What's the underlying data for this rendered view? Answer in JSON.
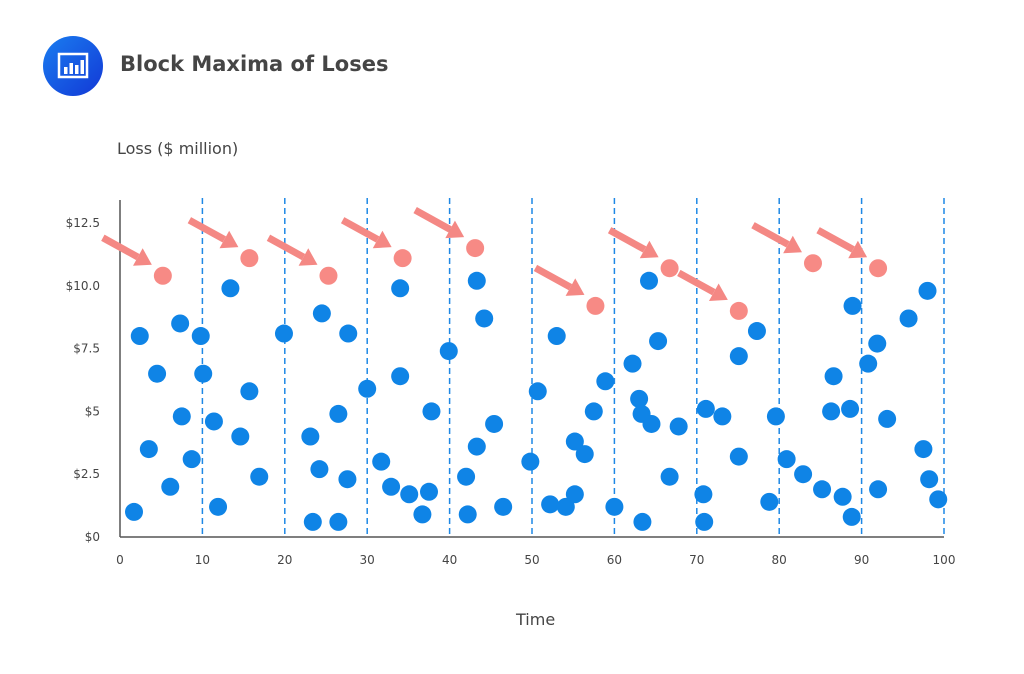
{
  "header": {
    "title": "Block Maxima of Loses",
    "logo_icon": "bar-chart-icon"
  },
  "chart_data": {
    "type": "scatter",
    "title": "Block Maxima of Loses",
    "ylabel": "Loss ($ million)",
    "xlabel": "Time",
    "xlim": [
      0,
      100
    ],
    "ylim": [
      0,
      12.5
    ],
    "x_ticks": [
      0,
      10,
      20,
      30,
      40,
      50,
      60,
      70,
      80,
      90,
      100
    ],
    "x_tick_labels": [
      "0",
      "10",
      "20",
      "30",
      "40",
      "50",
      "60",
      "70",
      "80",
      "90",
      "100"
    ],
    "y_ticks": [
      0,
      2.5,
      5,
      7.5,
      10,
      12.5
    ],
    "y_tick_labels": [
      "$0",
      "$2.5",
      "$5",
      "$7.5",
      "$10.0",
      "$12.5"
    ],
    "block_boundaries": [
      10,
      20,
      30,
      40,
      50,
      60,
      70,
      80,
      90,
      100
    ],
    "grid": "vertical dashed lines at block boundaries",
    "colors": {
      "losses": "#0f84e6",
      "maxima": "#f78a85",
      "arrows": "#f48884",
      "block_lines": "#1e88e5"
    },
    "series": [
      {
        "role": "losses",
        "points": [
          [
            1.7,
            1.0
          ],
          [
            2.4,
            8.0
          ],
          [
            3.5,
            3.5
          ],
          [
            4.5,
            6.5
          ],
          [
            6.1,
            2.0
          ],
          [
            7.3,
            8.5
          ],
          [
            7.5,
            4.8
          ],
          [
            8.7,
            3.1
          ],
          [
            9.8,
            8.0
          ],
          [
            10.1,
            6.5
          ],
          [
            11.4,
            4.6
          ],
          [
            11.9,
            1.2
          ],
          [
            13.4,
            9.9
          ],
          [
            14.6,
            4.0
          ],
          [
            15.7,
            5.8
          ],
          [
            16.9,
            2.4
          ],
          [
            19.9,
            8.1
          ],
          [
            23.1,
            4.0
          ],
          [
            23.4,
            0.6
          ],
          [
            24.2,
            2.7
          ],
          [
            24.5,
            8.9
          ],
          [
            26.5,
            0.6
          ],
          [
            26.5,
            4.9
          ],
          [
            27.6,
            2.3
          ],
          [
            27.7,
            8.1
          ],
          [
            30.0,
            5.9
          ],
          [
            31.7,
            3.0
          ],
          [
            32.9,
            2.0
          ],
          [
            34.0,
            9.9
          ],
          [
            34.0,
            6.4
          ],
          [
            35.1,
            1.7
          ],
          [
            36.7,
            0.9
          ],
          [
            37.5,
            1.8
          ],
          [
            37.8,
            5.0
          ],
          [
            39.9,
            7.4
          ],
          [
            42.0,
            2.4
          ],
          [
            42.2,
            0.9
          ],
          [
            43.3,
            10.2
          ],
          [
            43.3,
            3.6
          ],
          [
            44.2,
            8.7
          ],
          [
            45.4,
            4.5
          ],
          [
            46.5,
            1.2
          ],
          [
            49.8,
            3.0
          ],
          [
            50.7,
            5.8
          ],
          [
            52.2,
            1.3
          ],
          [
            53.0,
            8.0
          ],
          [
            54.1,
            1.2
          ],
          [
            55.2,
            3.8
          ],
          [
            55.2,
            1.7
          ],
          [
            56.4,
            3.3
          ],
          [
            57.5,
            5.0
          ],
          [
            58.9,
            6.2
          ],
          [
            60.0,
            1.2
          ],
          [
            62.2,
            6.9
          ],
          [
            63.0,
            5.5
          ],
          [
            63.3,
            4.9
          ],
          [
            63.4,
            0.6
          ],
          [
            64.2,
            10.2
          ],
          [
            64.5,
            4.5
          ],
          [
            65.3,
            7.8
          ],
          [
            66.7,
            2.4
          ],
          [
            67.8,
            4.4
          ],
          [
            70.8,
            1.7
          ],
          [
            70.9,
            0.6
          ],
          [
            71.1,
            5.1
          ],
          [
            73.1,
            4.8
          ],
          [
            75.1,
            7.2
          ],
          [
            75.1,
            3.2
          ],
          [
            77.3,
            8.2
          ],
          [
            78.8,
            1.4
          ],
          [
            79.6,
            4.8
          ],
          [
            80.9,
            3.1
          ],
          [
            82.9,
            2.5
          ],
          [
            85.2,
            1.9
          ],
          [
            86.3,
            5.0
          ],
          [
            86.6,
            6.4
          ],
          [
            87.7,
            1.6
          ],
          [
            88.6,
            5.1
          ],
          [
            88.9,
            9.2
          ],
          [
            88.8,
            0.8
          ],
          [
            90.8,
            6.9
          ],
          [
            91.9,
            7.7
          ],
          [
            92.0,
            1.9
          ],
          [
            93.1,
            4.7
          ],
          [
            95.7,
            8.7
          ],
          [
            97.5,
            3.5
          ],
          [
            98.0,
            9.8
          ],
          [
            98.2,
            2.3
          ],
          [
            99.3,
            1.5
          ]
        ]
      },
      {
        "role": "block maxima",
        "points": [
          [
            5.2,
            10.4
          ],
          [
            15.7,
            11.1
          ],
          [
            25.3,
            10.4
          ],
          [
            34.3,
            11.1
          ],
          [
            43.1,
            11.5
          ],
          [
            57.7,
            9.2
          ],
          [
            66.7,
            10.7
          ],
          [
            75.1,
            9.0
          ],
          [
            84.1,
            10.9
          ],
          [
            92.0,
            10.7
          ]
        ]
      }
    ]
  }
}
